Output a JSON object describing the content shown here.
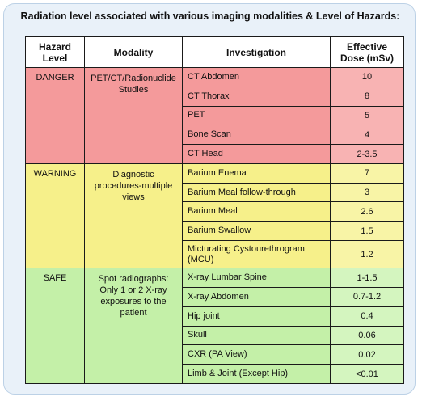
{
  "title": "Radiation level associated with various imaging modalities & Level of Hazards:",
  "headers": {
    "level": "Hazard Level",
    "modality": "Modality",
    "investigation": "Investigation",
    "dose": "Effective Dose (mSv)"
  },
  "colors": {
    "danger": "#f49a9b",
    "warning": "#f6f08a",
    "safe": "#c4f0a8",
    "frame": "#e9f1f9"
  },
  "groups": [
    {
      "level": "DANGER",
      "modality": "PET/CT/Radionuclide Studies",
      "rows": [
        {
          "investigation": "CT Abdomen",
          "dose": "10"
        },
        {
          "investigation": "CT Thorax",
          "dose": "8"
        },
        {
          "investigation": "PET",
          "dose": "5"
        },
        {
          "investigation": "Bone Scan",
          "dose": "4"
        },
        {
          "investigation": "CT Head",
          "dose": "2-3.5"
        }
      ]
    },
    {
      "level": "WARNING",
      "modality": "Diagnostic procedures-multiple views",
      "rows": [
        {
          "investigation": "Barium Enema",
          "dose": "7"
        },
        {
          "investigation": "Barium Meal follow-through",
          "dose": "3"
        },
        {
          "investigation": "Barium Meal",
          "dose": "2.6"
        },
        {
          "investigation": "Barium Swallow",
          "dose": "1.5"
        },
        {
          "investigation": "Micturating Cystourethrogram (MCU)",
          "dose": "1.2"
        }
      ]
    },
    {
      "level": "SAFE",
      "modality": "Spot radiographs: Only 1 or 2 X-ray exposures to the patient",
      "rows": [
        {
          "investigation": "X-ray Lumbar Spine",
          "dose": "1-1.5"
        },
        {
          "investigation": "X-ray Abdomen",
          "dose": "0.7-1.2"
        },
        {
          "investigation": "Hip joint",
          "dose": "0.4"
        },
        {
          "investigation": "Skull",
          "dose": "0.06"
        },
        {
          "investigation": "CXR (PA View)",
          "dose": "0.02"
        },
        {
          "investigation": "Limb & Joint (Except Hip)",
          "dose": "<0.01"
        }
      ]
    }
  ]
}
